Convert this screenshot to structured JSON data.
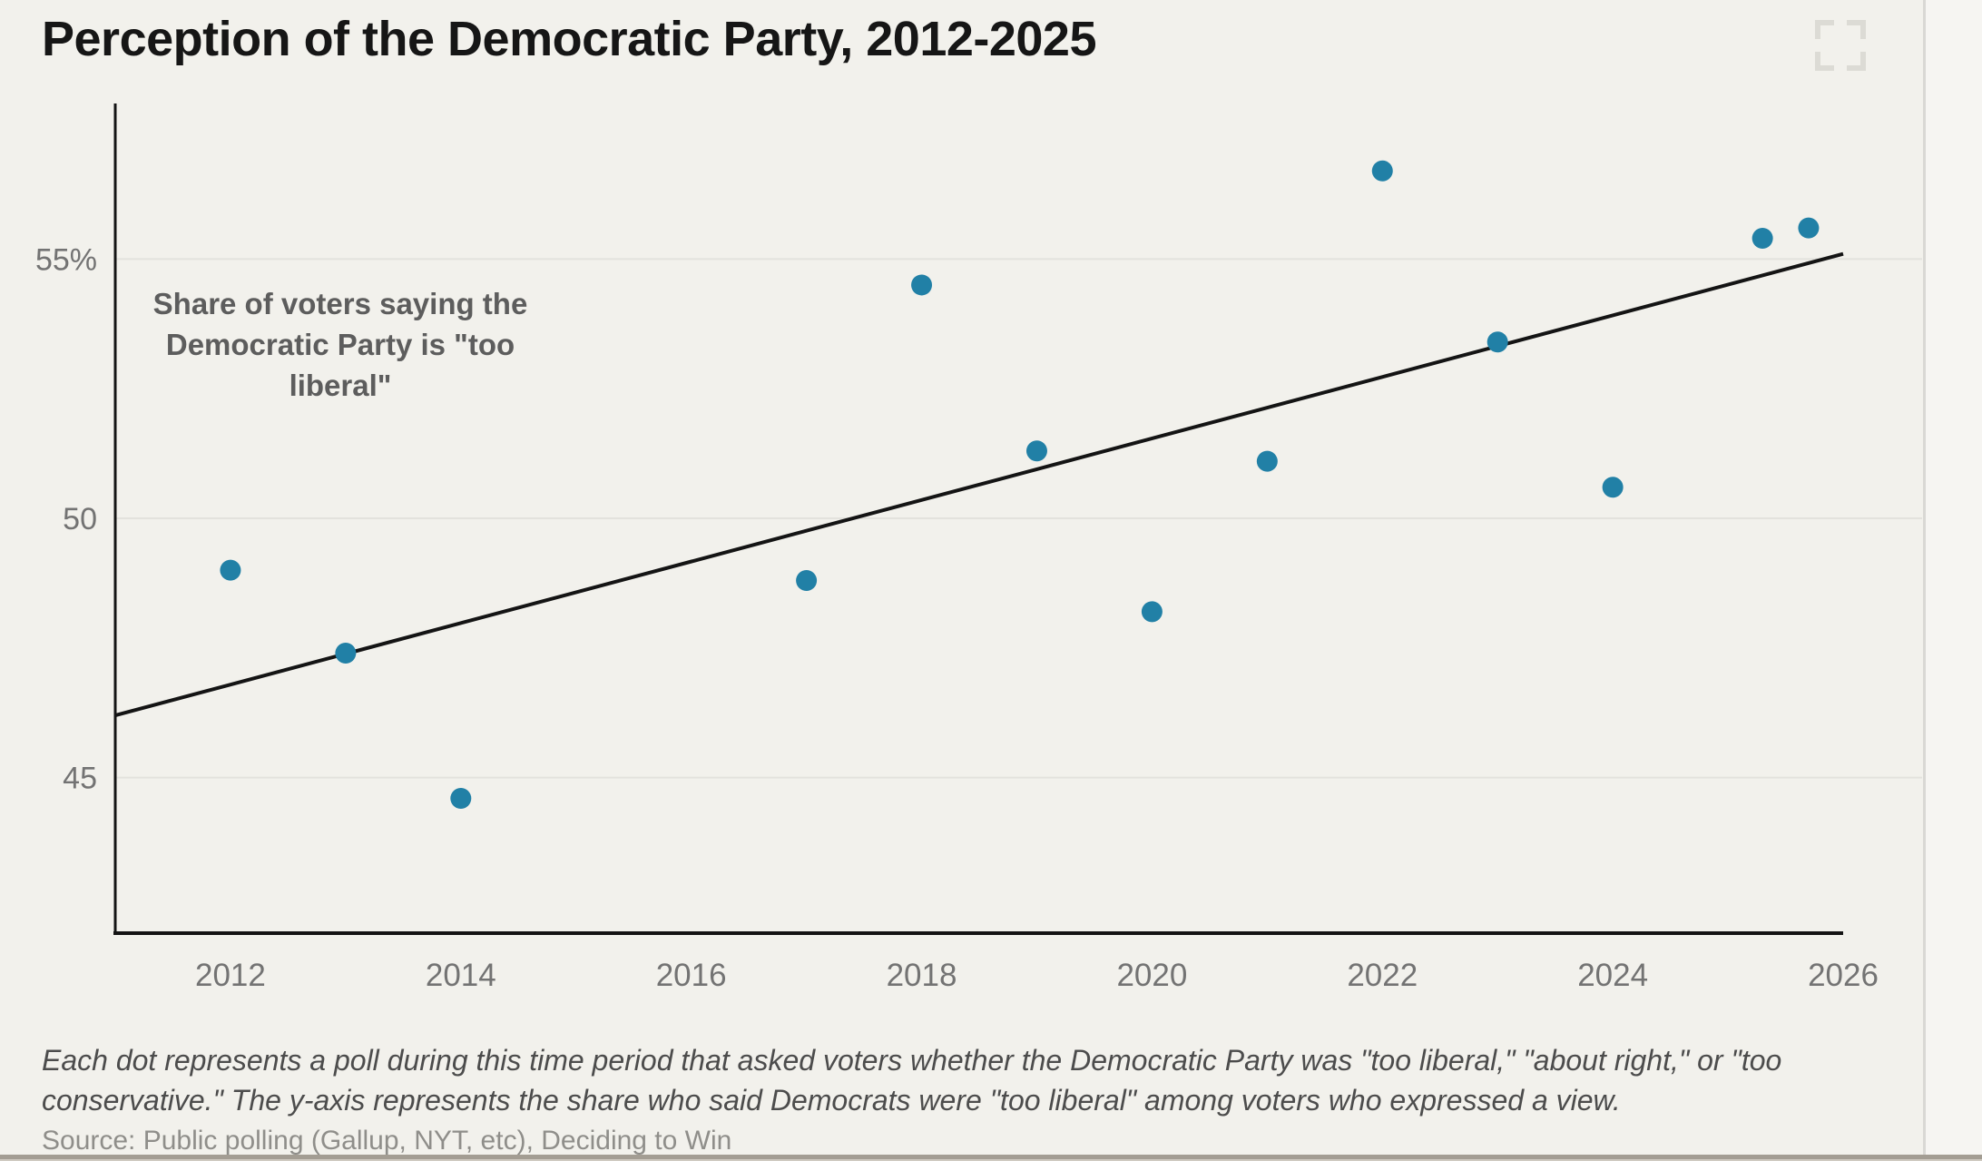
{
  "page": {
    "title": "Perception of the Democratic Party, 2012-2025",
    "background_color": "#f2f1ec"
  },
  "chart_data": {
    "type": "scatter",
    "title": "Perception of the Democratic Party, 2012-2025",
    "annotation_lines": [
      "Share of voters saying the",
      "Democratic Party is \"too",
      "liberal\""
    ],
    "xlim": [
      2011,
      2026
    ],
    "ylim": [
      42,
      58
    ],
    "grid": "horizontal",
    "x_ticks": [
      2012,
      2014,
      2016,
      2018,
      2020,
      2022,
      2024,
      2026
    ],
    "y_ticks": [
      {
        "value": 45,
        "label": "45"
      },
      {
        "value": 50,
        "label": "50"
      },
      {
        "value": 55,
        "label": "55%"
      }
    ],
    "points": [
      {
        "year": 2012.0,
        "value": 49.0
      },
      {
        "year": 2013.0,
        "value": 47.4
      },
      {
        "year": 2014.0,
        "value": 44.6
      },
      {
        "year": 2017.0,
        "value": 48.8
      },
      {
        "year": 2018.0,
        "value": 54.5
      },
      {
        "year": 2019.0,
        "value": 51.3
      },
      {
        "year": 2020.0,
        "value": 48.2
      },
      {
        "year": 2021.0,
        "value": 51.1
      },
      {
        "year": 2022.0,
        "value": 56.7
      },
      {
        "year": 2023.0,
        "value": 53.4
      },
      {
        "year": 2024.0,
        "value": 50.6
      },
      {
        "year": 2025.3,
        "value": 55.4
      },
      {
        "year": 2025.7,
        "value": 55.6
      }
    ],
    "trendline": {
      "x": [
        2011,
        2026
      ],
      "y": [
        46.2,
        55.1
      ]
    },
    "colors": {
      "dot": "#2180a6",
      "trend": "#141414",
      "axis": "#141414",
      "grid": "#e3e2dd",
      "tick_label": "#737373"
    }
  },
  "footer": {
    "note_lines": [
      "Each dot represents a poll during this time period that asked voters whether the Democratic Party was \"too liberal,\" \"about right,\" or \"too",
      "conservative.\" The y-axis represents the share who said Democrats were \"too liberal\" among voters who expressed a view."
    ],
    "source": "Source: Public polling (Gallup, NYT, etc), Deciding to Win"
  },
  "controls": {
    "fullscreen_icon": "expand-corners"
  }
}
